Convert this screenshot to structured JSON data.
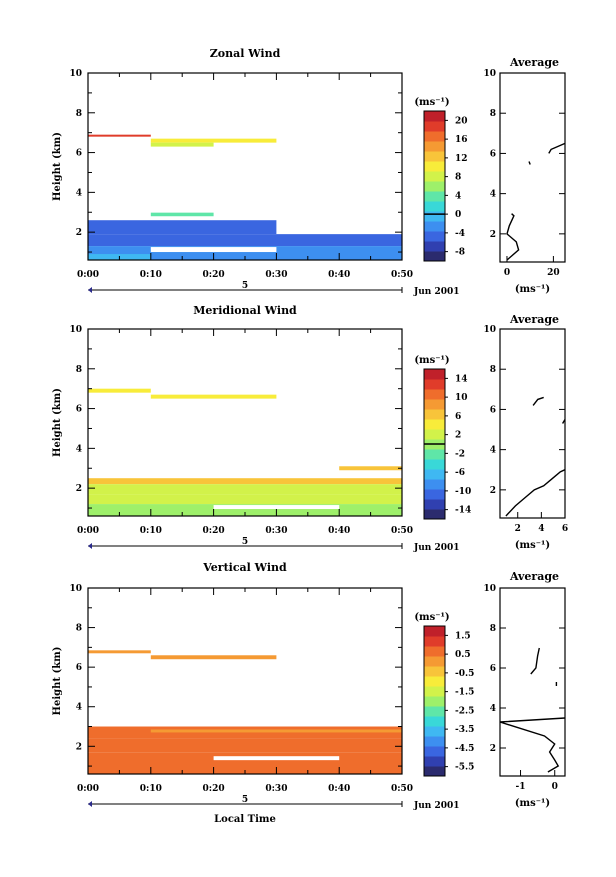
{
  "colors": {
    "scale": [
      "#2b2b6e",
      "#3040b0",
      "#3a66e0",
      "#3d8ff0",
      "#3fb8f2",
      "#39d8d8",
      "#5fe6a8",
      "#9ef06a",
      "#d2f24a",
      "#f8ec3a",
      "#f8c43a",
      "#f59a33",
      "#ef6d2c",
      "#e03c2a",
      "#c0202a"
    ]
  },
  "footer": {
    "xlabel": "Local Time"
  },
  "chart_data": [
    {
      "type": "heatmap",
      "title": "Zonal Wind",
      "xlabel": "",
      "ylabel": "Height (km)",
      "x_ticks": [
        "0:00",
        "0:10",
        "0:20",
        "0:30",
        "0:40",
        "0:50"
      ],
      "x_range_min": [
        0,
        50
      ],
      "y_ticks": [
        "2",
        "4",
        "6",
        "8",
        "10"
      ],
      "ylim": [
        0.6,
        10
      ],
      "date_axis": {
        "mark": "5",
        "label": "Jun 2001"
      },
      "colorbar": {
        "unit": "(ms⁻¹)",
        "ticks": [
          "-8",
          "-4",
          "0",
          "4",
          "8",
          "12",
          "16",
          "20"
        ],
        "range": [
          -10,
          22
        ],
        "mark": 0
      },
      "cells": [
        {
          "x": [
            0,
            10
          ],
          "y": [
            6.8,
            6.9
          ],
          "v": 18
        },
        {
          "x": [
            10,
            30
          ],
          "y": [
            6.5,
            6.7
          ],
          "v": 11
        },
        {
          "x": [
            10,
            20
          ],
          "y": [
            6.3,
            6.5
          ],
          "v": 8
        },
        {
          "x": [
            10,
            20
          ],
          "y": [
            2.8,
            2.98
          ],
          "v": 3
        },
        {
          "x": [
            0,
            30
          ],
          "y": [
            1.9,
            2.6
          ],
          "v": -5
        },
        {
          "x": [
            0,
            50
          ],
          "y": [
            1.3,
            1.9
          ],
          "v": -4
        },
        {
          "x": [
            0,
            50
          ],
          "y": [
            0.6,
            1.3
          ],
          "v": -2
        },
        {
          "x": [
            0,
            10
          ],
          "y": [
            0.6,
            0.9
          ],
          "v": 0
        }
      ],
      "gaps": [
        {
          "x": [
            10,
            30
          ],
          "y": [
            1.0,
            1.25
          ]
        }
      ],
      "average": {
        "title": "Average",
        "xlabel": "(ms⁻¹)",
        "x_ticks": [
          "0",
          "20"
        ],
        "xlim": [
          -3,
          25
        ],
        "segments": [
          [
            [
              0,
              0.7
            ],
            [
              2,
              0.9
            ],
            [
              5,
              1.2
            ],
            [
              4,
              1.6
            ],
            [
              0,
              2.0
            ],
            [
              1,
              2.4
            ],
            [
              3,
              2.9
            ],
            [
              2,
              3.0
            ]
          ],
          [
            [
              10,
              5.45
            ],
            [
              9.5,
              5.6
            ]
          ],
          [
            [
              18,
              6.0
            ],
            [
              19,
              6.2
            ],
            [
              25,
              6.5
            ]
          ]
        ]
      }
    },
    {
      "type": "heatmap",
      "title": "Meridional Wind",
      "xlabel": "",
      "ylabel": "Height (km)",
      "x_ticks": [
        "0:00",
        "0:10",
        "0:20",
        "0:30",
        "0:40",
        "0:50"
      ],
      "x_range_min": [
        0,
        50
      ],
      "y_ticks": [
        "2",
        "4",
        "6",
        "8",
        "10"
      ],
      "ylim": [
        0.6,
        10
      ],
      "date_axis": {
        "mark": "5",
        "label": "Jun 2001"
      },
      "colorbar": {
        "unit": "(ms⁻¹)",
        "ticks": [
          "-14",
          "-10",
          "-6",
          "-2",
          "2",
          "6",
          "10",
          "14"
        ],
        "range": [
          -16,
          16
        ],
        "mark": 0
      },
      "cells": [
        {
          "x": [
            0,
            10
          ],
          "y": [
            6.8,
            7.0
          ],
          "v": 5
        },
        {
          "x": [
            10,
            30
          ],
          "y": [
            6.5,
            6.7
          ],
          "v": 5
        },
        {
          "x": [
            40,
            50
          ],
          "y": [
            2.9,
            3.1
          ],
          "v": 6
        },
        {
          "x": [
            0,
            50
          ],
          "y": [
            2.2,
            2.5
          ],
          "v": 6
        },
        {
          "x": [
            0,
            50
          ],
          "y": [
            1.7,
            2.2
          ],
          "v": 2
        },
        {
          "x": [
            0,
            50
          ],
          "y": [
            1.2,
            1.7
          ],
          "v": 3
        },
        {
          "x": [
            0,
            50
          ],
          "y": [
            0.6,
            1.2
          ],
          "v": 1
        }
      ],
      "gaps": [
        {
          "x": [
            20,
            40
          ],
          "y": [
            0.95,
            1.15
          ]
        }
      ],
      "average": {
        "title": "Average",
        "xlabel": "(ms⁻¹)",
        "x_ticks": [
          "2",
          "4",
          "6"
        ],
        "xlim": [
          0.5,
          6
        ],
        "segments": [
          [
            [
              1.0,
              0.7
            ],
            [
              1.8,
              1.2
            ],
            [
              2.6,
              1.6
            ],
            [
              3.4,
              2.0
            ],
            [
              4.2,
              2.2
            ],
            [
              5.0,
              2.6
            ],
            [
              5.6,
              2.9
            ],
            [
              6.0,
              3.0
            ]
          ],
          [
            [
              3.3,
              6.2
            ],
            [
              3.7,
              6.5
            ],
            [
              4.2,
              6.6
            ]
          ],
          [
            [
              5.8,
              5.3
            ],
            [
              6.0,
              5.5
            ]
          ]
        ]
      }
    },
    {
      "type": "heatmap",
      "title": "Vertical Wind",
      "xlabel": "Local Time",
      "ylabel": "Height (km)",
      "x_ticks": [
        "0:00",
        "0:10",
        "0:20",
        "0:30",
        "0:40",
        "0:50"
      ],
      "x_range_min": [
        0,
        50
      ],
      "y_ticks": [
        "2",
        "4",
        "6",
        "8",
        "10"
      ],
      "ylim": [
        0.6,
        10
      ],
      "date_axis": {
        "mark": "5",
        "label": "Jun 2001"
      },
      "colorbar": {
        "unit": "(ms⁻¹)",
        "ticks": [
          "-5.5",
          "-4.5",
          "-3.5",
          "-2.5",
          "-1.5",
          "-0.5",
          "0.5",
          "1.5"
        ],
        "range": [
          -6,
          2
        ],
        "mark": null
      },
      "cells": [
        {
          "x": [
            0,
            10
          ],
          "y": [
            6.7,
            6.85
          ],
          "v": 0.3
        },
        {
          "x": [
            10,
            30
          ],
          "y": [
            6.4,
            6.6
          ],
          "v": 0.1
        },
        {
          "x": [
            0,
            50
          ],
          "y": [
            2.4,
            3.0
          ],
          "v": 0.5
        },
        {
          "x": [
            0,
            50
          ],
          "y": [
            1.7,
            2.4
          ],
          "v": 0.7
        },
        {
          "x": [
            0,
            50
          ],
          "y": [
            0.6,
            1.7
          ],
          "v": 0.6
        },
        {
          "x": [
            10,
            50
          ],
          "y": [
            2.7,
            2.85
          ],
          "v": 0.2
        }
      ],
      "gaps": [
        {
          "x": [
            20,
            40
          ],
          "y": [
            1.3,
            1.5
          ]
        }
      ],
      "average": {
        "title": "Average",
        "xlabel": "(ms⁻¹)",
        "x_ticks": [
          "-1",
          "0"
        ],
        "xlim": [
          -1.6,
          0.3
        ],
        "segments": [
          [
            [
              -0.2,
              0.8
            ],
            [
              0.1,
              1.1
            ],
            [
              0.0,
              1.4
            ],
            [
              -0.15,
              1.8
            ],
            [
              0.0,
              2.2
            ],
            [
              -0.3,
              2.6
            ],
            [
              -1.6,
              3.3
            ],
            [
              0.3,
              3.5
            ]
          ],
          [
            [
              -0.7,
              5.7
            ],
            [
              -0.55,
              6.0
            ],
            [
              -0.5,
              6.6
            ],
            [
              -0.45,
              7.0
            ]
          ],
          [
            [
              0.05,
              5.1
            ],
            [
              0.05,
              5.3
            ]
          ]
        ]
      }
    }
  ]
}
